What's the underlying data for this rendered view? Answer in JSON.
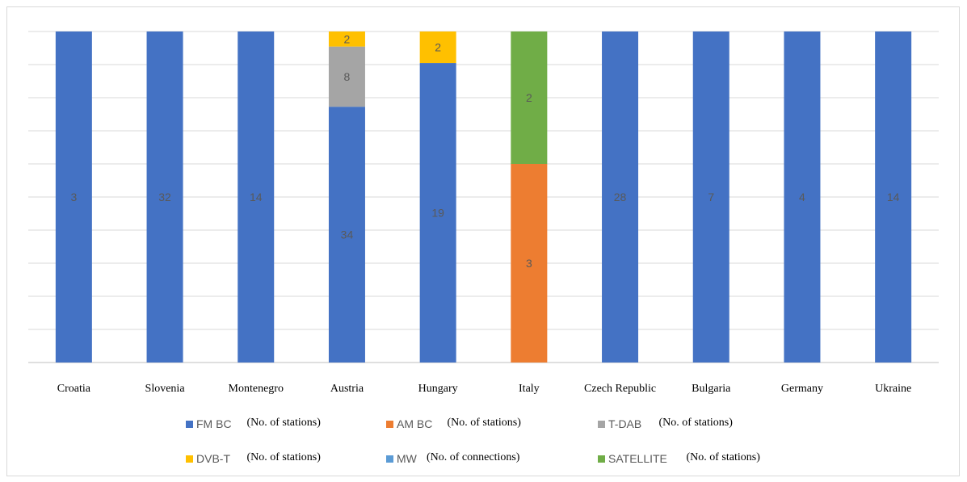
{
  "chart_data": {
    "type": "bar",
    "stacked": true,
    "normalized": true,
    "categories": [
      "Croatia",
      "Slovenia",
      "Montenegro",
      "Austria",
      "Hungary",
      "Italy",
      "Czech Republic",
      "Bulgaria",
      "Germany",
      "Ukraine"
    ],
    "series": [
      {
        "name": "FM BC",
        "note": "(No. of stations)",
        "color": "#4472C4",
        "values": [
          3,
          32,
          14,
          34,
          19,
          0,
          28,
          7,
          4,
          14
        ]
      },
      {
        "name": "AM BC",
        "note": "(No. of stations)",
        "color": "#ED7D31",
        "values": [
          0,
          0,
          0,
          0,
          0,
          3,
          0,
          0,
          0,
          0
        ]
      },
      {
        "name": "T-DAB",
        "note": "(No. of stations)",
        "color": "#A5A5A5",
        "values": [
          0,
          0,
          0,
          8,
          0,
          0,
          0,
          0,
          0,
          0
        ]
      },
      {
        "name": "DVB-T",
        "note": "(No. of stations)",
        "color": "#FFC000",
        "values": [
          0,
          0,
          0,
          2,
          2,
          0,
          0,
          0,
          0,
          0
        ]
      },
      {
        "name": "MW",
        "note": "(No. of connections)",
        "color": "#5B9BD5",
        "values": [
          0,
          0,
          0,
          0,
          0,
          0,
          0,
          0,
          0,
          0
        ]
      },
      {
        "name": "SATELLITE",
        "note": "(No. of stations)",
        "color": "#70AD47",
        "values": [
          0,
          0,
          0,
          0,
          0,
          2,
          0,
          0,
          0,
          0
        ]
      }
    ],
    "gridlines": true,
    "legend_position": "bottom"
  }
}
